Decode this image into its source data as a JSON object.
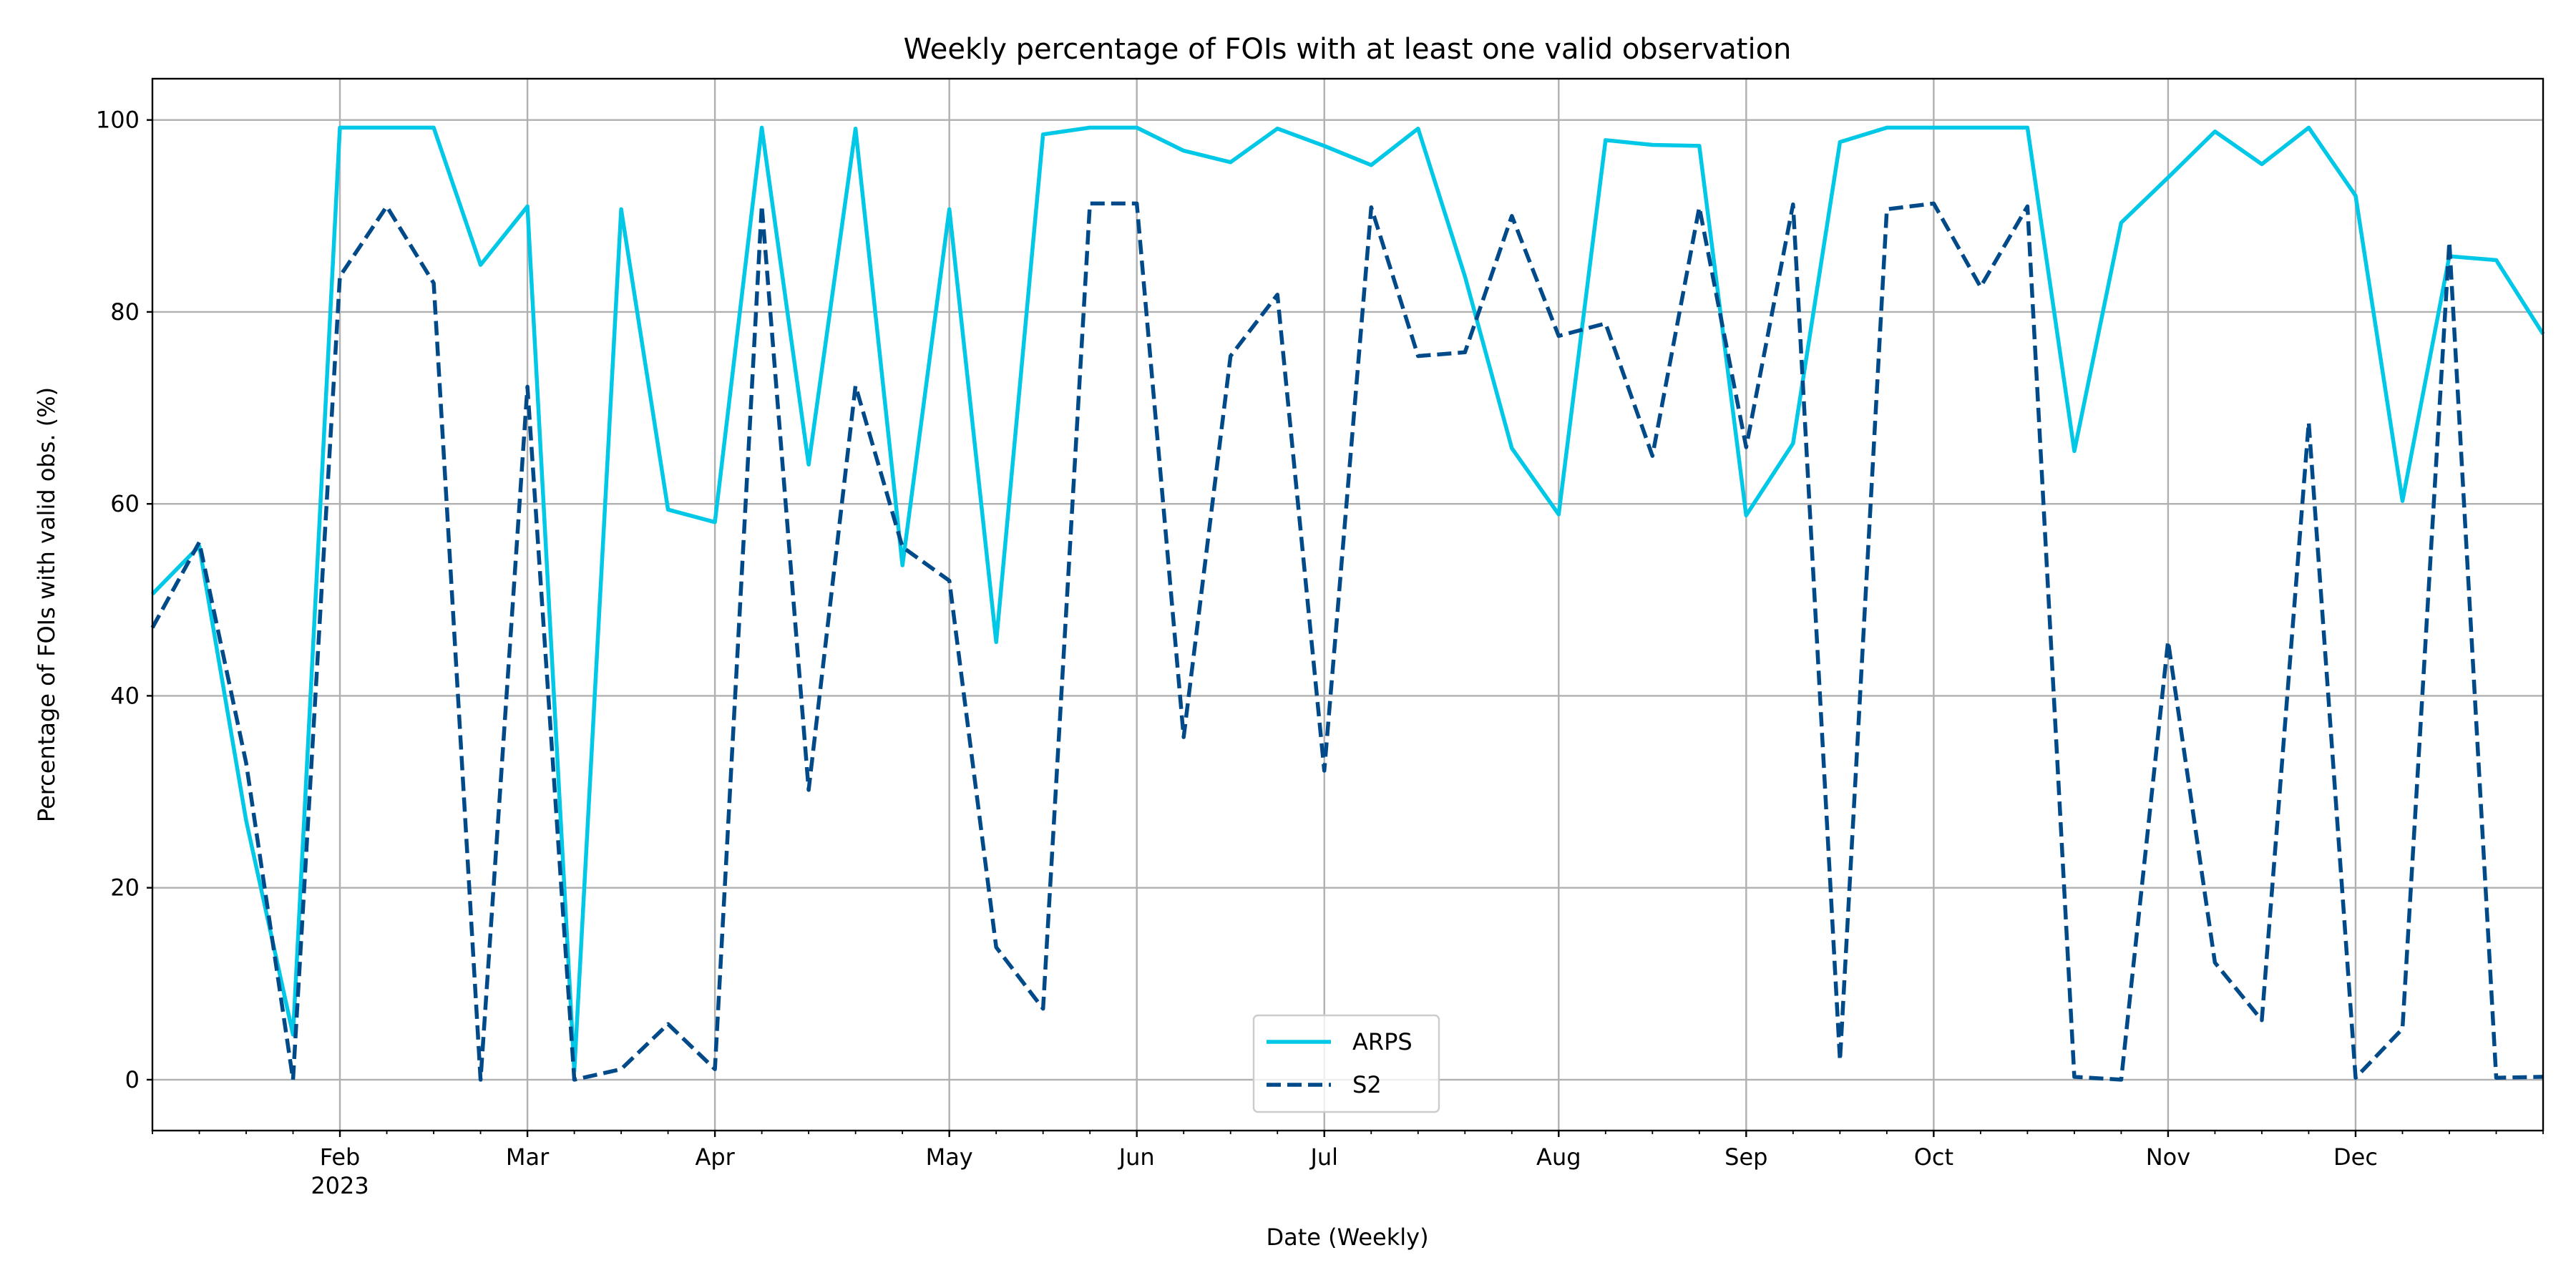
{
  "chart_data": {
    "type": "line",
    "title": "Weekly percentage of FOIs with at least one valid observation",
    "xlabel": "Date (Weekly)",
    "ylabel": "Percentage of FOIs with valid obs. (%)",
    "ylim": [
      -5.3,
      104.3
    ],
    "yticks": [
      0,
      20,
      40,
      60,
      80,
      100
    ],
    "grid": true,
    "legend_position": "lower center",
    "x": [
      "2023-01-02",
      "2023-01-09",
      "2023-01-16",
      "2023-01-23",
      "2023-01-30",
      "2023-02-06",
      "2023-02-13",
      "2023-02-20",
      "2023-02-27",
      "2023-03-06",
      "2023-03-13",
      "2023-03-20",
      "2023-03-27",
      "2023-04-03",
      "2023-04-10",
      "2023-04-17",
      "2023-04-24",
      "2023-05-01",
      "2023-05-08",
      "2023-05-15",
      "2023-05-22",
      "2023-05-29",
      "2023-06-05",
      "2023-06-12",
      "2023-06-19",
      "2023-06-26",
      "2023-07-03",
      "2023-07-10",
      "2023-07-17",
      "2023-07-24",
      "2023-07-31",
      "2023-08-07",
      "2023-08-14",
      "2023-08-21",
      "2023-08-28",
      "2023-09-04",
      "2023-09-11",
      "2023-09-18",
      "2023-09-25",
      "2023-10-02",
      "2023-10-09",
      "2023-10-16",
      "2023-10-23",
      "2023-10-30",
      "2023-11-06",
      "2023-11-13",
      "2023-11-20",
      "2023-11-27",
      "2023-12-04",
      "2023-12-11",
      "2023-12-18",
      "2023-12-25"
    ],
    "xticks": [
      {
        "index": 4,
        "label": "Feb",
        "sublabel": "2023"
      },
      {
        "index": 8,
        "label": "Mar"
      },
      {
        "index": 12,
        "label": "Apr"
      },
      {
        "index": 17,
        "label": "May"
      },
      {
        "index": 21,
        "label": "Jun"
      },
      {
        "index": 25,
        "label": "Jul"
      },
      {
        "index": 30,
        "label": "Aug"
      },
      {
        "index": 34,
        "label": "Sep"
      },
      {
        "index": 38,
        "label": "Oct"
      },
      {
        "index": 43,
        "label": "Nov"
      },
      {
        "index": 47,
        "label": "Dec"
      }
    ],
    "series": [
      {
        "name": "ARPS",
        "color": "#00c8e6",
        "style": "solid",
        "values": [
          50.6,
          55.6,
          27,
          4.7,
          99.2,
          99.2,
          99.2,
          84.9,
          91.0,
          0.9,
          90.7,
          59.4,
          58.1,
          99.2,
          64.1,
          99.1,
          53.6,
          90.7,
          45.6,
          98.5,
          99.2,
          99.2,
          96.8,
          95.6,
          99.1,
          97.3,
          95.3,
          99.1,
          83.7,
          65.8,
          58.9,
          97.9,
          97.4,
          97.3,
          58.8,
          66.3,
          97.7,
          99.2,
          99.2,
          99.2,
          99.2,
          65.5,
          89.3,
          94.0,
          98.8,
          95.4,
          99.2,
          92.1,
          60.3,
          85.8,
          85.4,
          77.7
        ]
      },
      {
        "name": "S2",
        "color": "#004a8a",
        "style": "dashed",
        "values": [
          47.1,
          56.0,
          33,
          0,
          83.7,
          91.0,
          83.0,
          0,
          72.2,
          0,
          1.1,
          5.8,
          1.1,
          91.1,
          30.2,
          72.3,
          55.5,
          52.0,
          13.8,
          7.4,
          91.3,
          91.3,
          35.7,
          75.4,
          81.8,
          32.2,
          90.9,
          75.4,
          75.8,
          90.0,
          77.5,
          78.8,
          65.0,
          90.9,
          65.9,
          91.2,
          2.0,
          90.7,
          91.3,
          82.6,
          91.0,
          0.3,
          0,
          45.7,
          12.2,
          6.2,
          68.5,
          0.2,
          5.3,
          87.3,
          0.2,
          0.3
        ]
      }
    ]
  }
}
